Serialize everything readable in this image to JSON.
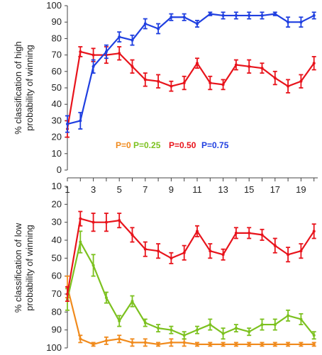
{
  "chart_data": [
    {
      "type": "line",
      "ylabel": "% classification of high probability of winning",
      "ylabel_lines": [
        "% classification of high",
        "probability of winning"
      ],
      "ylim": [
        0,
        100
      ],
      "y_ticks": [
        0,
        10,
        20,
        30,
        40,
        50,
        60,
        70,
        80,
        90,
        100
      ],
      "x": [
        1,
        2,
        3,
        4,
        5,
        6,
        7,
        8,
        9,
        10,
        11,
        12,
        13,
        14,
        15,
        16,
        17,
        18,
        19,
        20
      ],
      "grid": false,
      "legend_position": "center",
      "series": [
        {
          "name": "P=0.50",
          "color": "#e8131b",
          "values": [
            25,
            72,
            70,
            70,
            71,
            63,
            55,
            54,
            51,
            53,
            65,
            53,
            52,
            64,
            63,
            62,
            56,
            51,
            54,
            65
          ],
          "errors": [
            5,
            3,
            4,
            5,
            4,
            4,
            4,
            4,
            3,
            4,
            3,
            4,
            3,
            3,
            4,
            3,
            4,
            4,
            4,
            4
          ]
        },
        {
          "name": "P=0.75",
          "color": "#1f3fe0",
          "values": [
            28,
            30,
            63,
            72,
            81,
            79,
            89,
            86,
            93,
            93,
            89,
            95,
            94,
            94,
            94,
            94,
            95,
            90,
            90,
            94
          ],
          "errors": [
            5,
            5,
            4,
            4,
            3,
            3,
            3,
            3,
            2,
            2,
            2,
            1,
            2,
            2,
            2,
            2,
            1,
            3,
            3,
            2
          ]
        }
      ]
    },
    {
      "type": "line",
      "ylabel": "% classification of low probability of winning",
      "ylabel_lines": [
        "% classification of low",
        "probability of winning"
      ],
      "ylim": [
        100,
        0
      ],
      "y_ticks": [
        10,
        20,
        30,
        40,
        50,
        60,
        70,
        80,
        90,
        100
      ],
      "x": [
        1,
        2,
        3,
        4,
        5,
        6,
        7,
        8,
        9,
        10,
        11,
        12,
        13,
        14,
        15,
        16,
        17,
        18,
        19,
        20
      ],
      "x_ticks": [
        "1",
        "3",
        "5",
        "7",
        "9",
        "11",
        "13",
        "15",
        "17",
        "19"
      ],
      "grid": false,
      "series": [
        {
          "name": "P=0",
          "color": "#f08a1c",
          "values": [
            66,
            95,
            98,
            96,
            95,
            97,
            97,
            98,
            97,
            97,
            98,
            98,
            98,
            98,
            98,
            98,
            98,
            98,
            98,
            98
          ],
          "errors": [
            6,
            2,
            1,
            2,
            2,
            2,
            2,
            1,
            2,
            2,
            1,
            1,
            1,
            1,
            1,
            1,
            1,
            1,
            1,
            1
          ]
        },
        {
          "name": "P=0.25",
          "color": "#7cc11f",
          "values": [
            73,
            41,
            54,
            72,
            85,
            74,
            86,
            89,
            90,
            93,
            90,
            87,
            92,
            89,
            91,
            87,
            87,
            82,
            84,
            93
          ],
          "errors": [
            6,
            6,
            6,
            3,
            3,
            3,
            2,
            2,
            2,
            2,
            2,
            3,
            3,
            2,
            2,
            3,
            3,
            3,
            3,
            2
          ]
        },
        {
          "name": "P=0.50",
          "color": "#e8131b",
          "values": [
            70,
            28,
            30,
            30,
            29,
            37,
            45,
            46,
            50,
            47,
            35,
            46,
            48,
            36,
            36,
            37,
            43,
            48,
            46,
            35
          ],
          "errors": [
            4,
            4,
            5,
            5,
            4,
            4,
            4,
            4,
            3,
            4,
            3,
            4,
            3,
            3,
            3,
            3,
            4,
            4,
            4,
            4
          ]
        }
      ]
    }
  ],
  "legend": [
    {
      "name": "P=0",
      "color": "#f08a1c"
    },
    {
      "name": "P=0.25",
      "color": "#7cc11f"
    },
    {
      "name": "P=0.50",
      "color": "#e8131b"
    },
    {
      "name": "P=0.75",
      "color": "#1f3fe0"
    }
  ]
}
